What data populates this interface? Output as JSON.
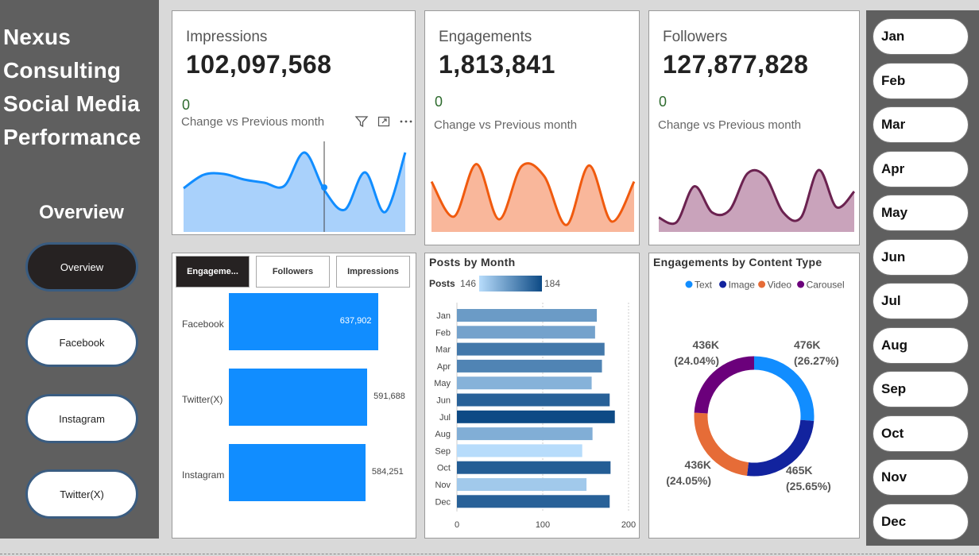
{
  "sidebar": {
    "brand_lines": [
      "Nexus",
      "Consulting",
      "Social Media",
      "Performance"
    ],
    "section_title": "Overview",
    "nav": [
      {
        "label": "Overview",
        "active": true
      },
      {
        "label": "Facebook",
        "active": false
      },
      {
        "label": "Instagram",
        "active": false
      },
      {
        "label": "Twitter(X)",
        "active": false
      }
    ]
  },
  "kpis": [
    {
      "title": "Impressions",
      "value": "102,097,568",
      "change": "0",
      "change_label": "Change vs Previous month",
      "color": "#118dff",
      "fill": "#a9d1fb",
      "trend": [
        55,
        72,
        73,
        66,
        62,
        58,
        100,
        52,
        28,
        75,
        25,
        100
      ]
    },
    {
      "title": "Engagements",
      "value": "1,813,841",
      "change": "0",
      "change_label": "Change vs Previous month",
      "color": "#f05a0e",
      "fill": "#f9b79b",
      "trend": [
        72,
        22,
        97,
        18,
        94,
        80,
        10,
        95,
        15,
        72
      ]
    },
    {
      "title": "Followers",
      "value": "127,877,828",
      "change": "0",
      "change_label": "Change vs Previous month",
      "color": "#6b2250",
      "fill": "#c9a3bb",
      "trend": [
        22,
        15,
        70,
        30,
        34,
        90,
        85,
        30,
        22,
        95,
        38,
        62
      ]
    }
  ],
  "icons": {
    "filter": "filter-icon",
    "focus": "focus-mode-icon",
    "more": "more-options-icon"
  },
  "platform_chart": {
    "tabs": [
      {
        "label": "Engageme...",
        "active": true
      },
      {
        "label": "Followers",
        "active": false
      },
      {
        "label": "Impressions",
        "active": false
      }
    ],
    "chart_data": {
      "type": "bar",
      "orientation": "horizontal",
      "categories": [
        "Facebook",
        "Twitter(X)",
        "Instagram"
      ],
      "values": [
        637902,
        591688,
        584251
      ],
      "value_labels": [
        "637,902",
        "591,688",
        "584,251"
      ]
    }
  },
  "posts_chart": {
    "title": "Posts by Month",
    "legend_label": "Posts",
    "legend_min": "146",
    "legend_max": "184",
    "chart_data": {
      "type": "bar",
      "orientation": "horizontal",
      "title": "Posts by Month",
      "categories": [
        "Jan",
        "Feb",
        "Mar",
        "Apr",
        "May",
        "Jun",
        "Jul",
        "Aug",
        "Sep",
        "Oct",
        "Nov",
        "Dec"
      ],
      "values": [
        163,
        161,
        172,
        169,
        157,
        178,
        184,
        158,
        146,
        179,
        151,
        178
      ],
      "xlim": [
        0,
        200
      ],
      "xticks": [
        "0",
        "100",
        "200"
      ]
    }
  },
  "content_chart": {
    "title": "Engagements by Content Type",
    "legend": [
      {
        "label": "Text",
        "color": "#118dff"
      },
      {
        "label": "Image",
        "color": "#12239e"
      },
      {
        "label": "Video",
        "color": "#e66c37"
      },
      {
        "label": "Carousel",
        "color": "#6b007b"
      }
    ],
    "chart_data": {
      "type": "pie",
      "variant": "donut",
      "labels": [
        "Text",
        "Image",
        "Video",
        "Carousel"
      ],
      "values": [
        476,
        465,
        436,
        436
      ],
      "percents": [
        26.27,
        25.65,
        24.05,
        24.04
      ],
      "slice_labels": [
        {
          "value": "476K",
          "pct": "(26.27%)"
        },
        {
          "value": "465K",
          "pct": "(25.65%)"
        },
        {
          "value": "436K",
          "pct": "(24.05%)"
        },
        {
          "value": "436K",
          "pct": "(24.04%)"
        }
      ]
    }
  },
  "months": [
    "Jan",
    "Feb",
    "Mar",
    "Apr",
    "May",
    "Jun",
    "Jul",
    "Aug",
    "Sep",
    "Oct",
    "Nov",
    "Dec"
  ]
}
